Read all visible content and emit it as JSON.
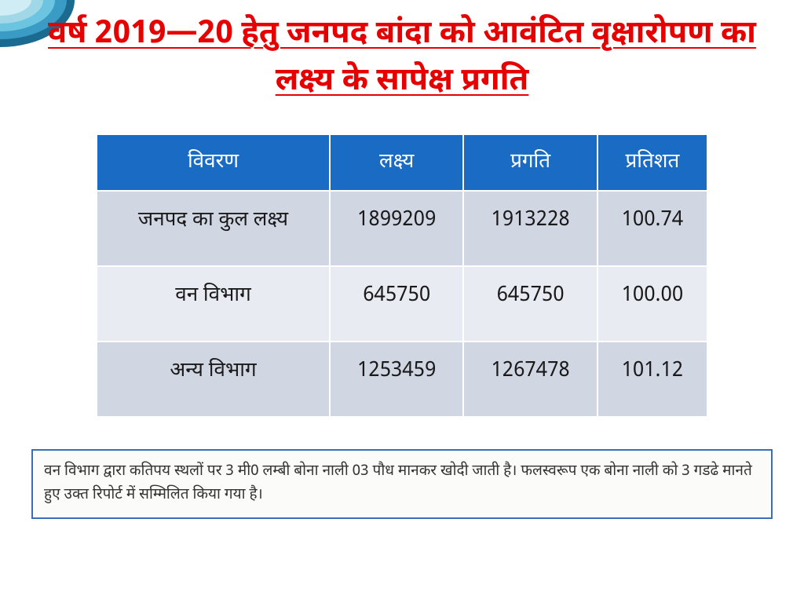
{
  "title": {
    "text": "वर्ष 2019—20 हेतु जनपद बांदा को आवंटित वृक्षारोपण का लक्ष्य के सापेक्ष प्रगति",
    "color": "#e60000",
    "fontsize": 40
  },
  "table": {
    "header_bg": "#1a6bc4",
    "header_color": "#ffffff",
    "header_fontsize": 26,
    "cell_fontsize": 26,
    "cell_color": "#1a1a1a",
    "row_colors": [
      "#d1d6e3",
      "#e8ebf2",
      "#d1d6e3"
    ],
    "columns": [
      "विवरण",
      "लक्ष्य",
      "प्रगति",
      "प्रतिशत"
    ],
    "rows": [
      [
        "जनपद का कुल लक्ष्य",
        "1899209",
        "1913228",
        "100.74"
      ],
      [
        "वन विभाग",
        "645750",
        "645750",
        "100.00"
      ],
      [
        "अन्य विभाग",
        "1253459",
        "1267478",
        "101.12"
      ]
    ]
  },
  "note": {
    "text": "वन विभाग द्वारा कतिपय स्थलों पर 3 मी0 लम्बी बोना नाली 03 पौध मानकर खोदी जाती है। फलस्वरूप एक बोना नाली को 3 गडढे मानते हुए उक्त रिपोर्ट में सम्मिलित किया गया है।",
    "fontsize": 19,
    "color": "#333333",
    "border_color": "#3a6fb5",
    "bg_color": "#fbfbfa"
  },
  "decoration": {
    "colors": [
      "#1a6b8f",
      "#3a9bc4",
      "#6bc4e0",
      "#a0d8e8",
      "#d0ecf4"
    ]
  }
}
